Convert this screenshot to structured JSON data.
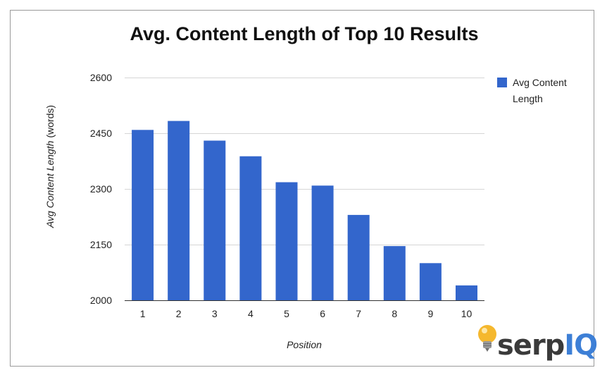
{
  "chart_data": {
    "type": "bar",
    "title": "Avg. Content Length of Top 10 Results",
    "xlabel": "Position",
    "ylabel_italic": "Avg Content Length",
    "ylabel_suffix": " (words)",
    "categories": [
      "1",
      "2",
      "3",
      "4",
      "5",
      "6",
      "7",
      "8",
      "9",
      "10"
    ],
    "series": [
      {
        "name": "Avg Content Length",
        "values": [
          2459,
          2483,
          2430,
          2388,
          2318,
          2309,
          2230,
          2146,
          2100,
          2040
        ]
      }
    ],
    "ylim": [
      2000,
      2600
    ],
    "yticks": [
      2000,
      2150,
      2300,
      2450,
      2600
    ],
    "grid": true,
    "legend_position": "top-right",
    "legend_lines": [
      "Avg Content",
      "Length"
    ],
    "bar_color": "#3366cc"
  },
  "branding": {
    "logo_main": "serp",
    "logo_accent": "IQ",
    "logo_icon": "lightbulb-icon",
    "accent_color": "#3d7fd6"
  }
}
